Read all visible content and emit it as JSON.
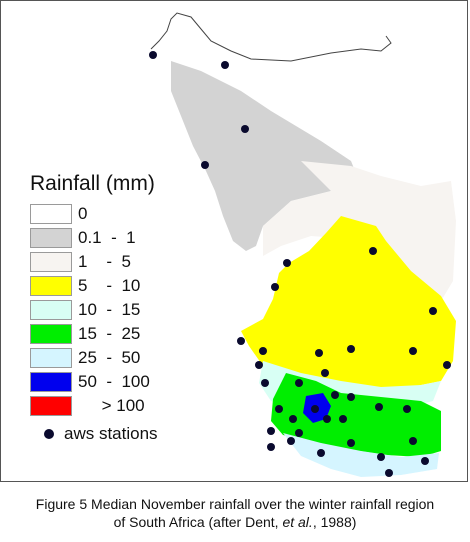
{
  "legend": {
    "title": "Rainfall (mm)",
    "classes": [
      {
        "label": "0",
        "color": "#ffffff"
      },
      {
        "label": "0.1  -  1",
        "color": "#d3d3d3"
      },
      {
        "label": "1    -  5",
        "color": "#f7f4f1"
      },
      {
        "label": "5    -  10",
        "color": "#ffff00"
      },
      {
        "label": "10  -  15",
        "color": "#d8fff4"
      },
      {
        "label": "15  -  25",
        "color": "#00ee00"
      },
      {
        "label": "25  -  50",
        "color": "#d5f5ff"
      },
      {
        "label": "50  -  100",
        "color": "#0000ee"
      },
      {
        "label": "     > 100",
        "color": "#ff0000"
      }
    ]
  },
  "stations": {
    "label": "aws stations",
    "color": "#0a0a2e",
    "count": 37
  },
  "caption": {
    "line1": "Figure 5 Median November rainfall over the winter rainfall region",
    "line2_before": "of South Africa (after Dent, ",
    "line2_italic": "et al.",
    "line2_after": ", 1988)"
  }
}
